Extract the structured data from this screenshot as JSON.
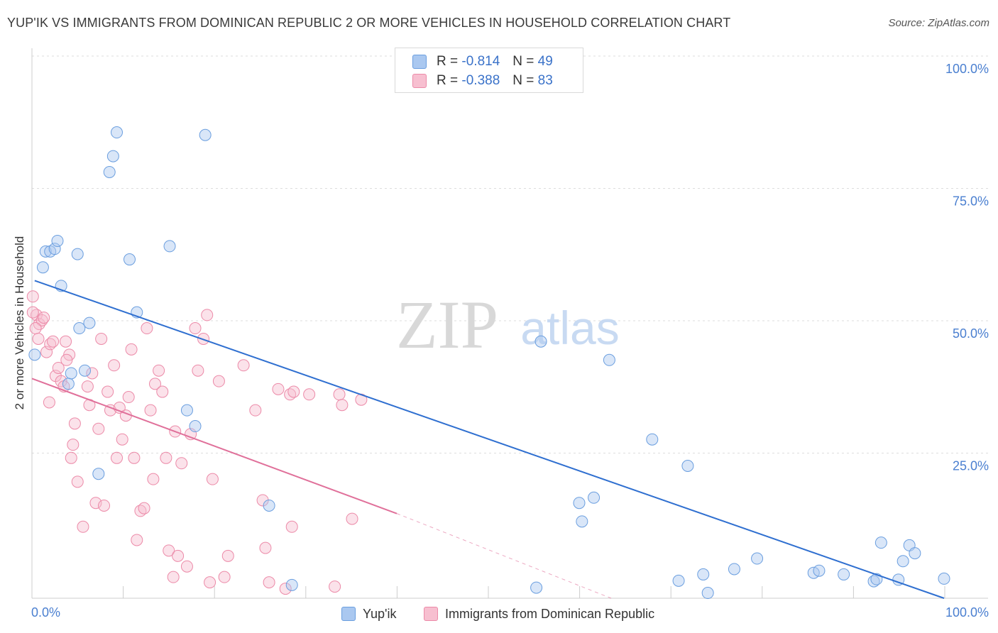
{
  "title": "YUP'IK VS IMMIGRANTS FROM DOMINICAN REPUBLIC 2 OR MORE VEHICLES IN HOUSEHOLD CORRELATION CHART",
  "source": "Source: ZipAtlas.com",
  "watermark": {
    "zip": "ZIP",
    "atlas": "atlas"
  },
  "legend": {
    "r_label": "R =",
    "n_label": "N =",
    "series": [
      {
        "name": "Yup'ik",
        "r": "-0.814",
        "n": "49",
        "fill": "#aac8f0",
        "stroke": "#6a9edf"
      },
      {
        "name": "Immigrants from Dominican Republic",
        "r": "-0.388",
        "n": "83",
        "fill": "#f7bfd0",
        "stroke": "#ec8aa8"
      }
    ]
  },
  "colors": {
    "blue_point_fill": "rgba(170,200,240,0.45)",
    "blue_point_stroke": "#6a9edf",
    "blue_line": "#2f6fd0",
    "pink_point_fill": "rgba(247,191,208,0.45)",
    "pink_point_stroke": "#ec8aa8",
    "pink_line": "#e0709a",
    "tick_label": "#4a7fd0",
    "grid": "#dddddd"
  },
  "chart_data": {
    "type": "scatter",
    "ylabel": "2 or more Vehicles in Household",
    "xlim": [
      0,
      100
    ],
    "ylim": [
      0,
      100
    ],
    "x_tick_labels": [
      "0.0%",
      "100.0%"
    ],
    "y_ticks": [
      25,
      50,
      75,
      100
    ],
    "y_tick_labels": [
      "25.0%",
      "50.0%",
      "75.0%",
      "100.0%"
    ],
    "grid": true,
    "series": [
      {
        "name": "Yup'ik",
        "points": [
          [
            0.3,
            46
          ],
          [
            1.2,
            62.5
          ],
          [
            1.5,
            65.5
          ],
          [
            2,
            65.5
          ],
          [
            2.5,
            66
          ],
          [
            2.8,
            67.5
          ],
          [
            3.2,
            59
          ],
          [
            4,
            40.5
          ],
          [
            4.3,
            42.5
          ],
          [
            5,
            65
          ],
          [
            5.2,
            51
          ],
          [
            5.8,
            43
          ],
          [
            6.3,
            52
          ],
          [
            7.3,
            23.5
          ],
          [
            8.5,
            80.5
          ],
          [
            8.9,
            83.5
          ],
          [
            9.3,
            88
          ],
          [
            10.7,
            64
          ],
          [
            11.5,
            54
          ],
          [
            15.1,
            66.5
          ],
          [
            17,
            35.5
          ],
          [
            17.9,
            32.5
          ],
          [
            19,
            87.5
          ],
          [
            26,
            17.5
          ],
          [
            28.5,
            2.5
          ],
          [
            55.3,
            2
          ],
          [
            55.8,
            48.5
          ],
          [
            60,
            18
          ],
          [
            60.3,
            14.5
          ],
          [
            61.6,
            19
          ],
          [
            63.3,
            45
          ],
          [
            68,
            30
          ],
          [
            70.9,
            3.3
          ],
          [
            71.9,
            25
          ],
          [
            73.6,
            4.5
          ],
          [
            74.1,
            1
          ],
          [
            77,
            5.5
          ],
          [
            79.5,
            7.5
          ],
          [
            85.7,
            4.8
          ],
          [
            86.3,
            5.2
          ],
          [
            89,
            4.5
          ],
          [
            92.3,
            3.2
          ],
          [
            92.6,
            3.6
          ],
          [
            93.1,
            10.5
          ],
          [
            95,
            3.5
          ],
          [
            95.5,
            7
          ],
          [
            96.2,
            10
          ],
          [
            96.8,
            8.5
          ],
          [
            100,
            3.7
          ]
        ]
      },
      {
        "name": "Immigrants from Dominican Republic",
        "points": [
          [
            0.1,
            57
          ],
          [
            0.5,
            53.5
          ],
          [
            0.8,
            51.8
          ],
          [
            1.1,
            52.5
          ],
          [
            1.3,
            53
          ],
          [
            1.6,
            46.5
          ],
          [
            2,
            48
          ],
          [
            2.3,
            48.5
          ],
          [
            2.6,
            42
          ],
          [
            2.9,
            43.5
          ],
          [
            3.2,
            41
          ],
          [
            3.5,
            40
          ],
          [
            3.7,
            48.5
          ],
          [
            4.1,
            46
          ],
          [
            4.3,
            26.5
          ],
          [
            4.5,
            29
          ],
          [
            4.7,
            33
          ],
          [
            5,
            22
          ],
          [
            5.6,
            13.5
          ],
          [
            6.1,
            40
          ],
          [
            6.3,
            36.5
          ],
          [
            6.6,
            42.5
          ],
          [
            7,
            18
          ],
          [
            7.3,
            32
          ],
          [
            7.6,
            49
          ],
          [
            7.9,
            17.5
          ],
          [
            8.3,
            39
          ],
          [
            8.6,
            35.5
          ],
          [
            9,
            44
          ],
          [
            9.3,
            26.5
          ],
          [
            9.6,
            36
          ],
          [
            9.9,
            30
          ],
          [
            10.3,
            34.5
          ],
          [
            10.6,
            38
          ],
          [
            10.9,
            47
          ],
          [
            11.2,
            26.5
          ],
          [
            11.5,
            11
          ],
          [
            11.9,
            16.5
          ],
          [
            12.3,
            17
          ],
          [
            12.6,
            51
          ],
          [
            13,
            35.5
          ],
          [
            13.3,
            22.5
          ],
          [
            13.5,
            40.5
          ],
          [
            13.9,
            43
          ],
          [
            14.3,
            39
          ],
          [
            14.7,
            26.5
          ],
          [
            15,
            9
          ],
          [
            15.5,
            4
          ],
          [
            15.7,
            31.5
          ],
          [
            16,
            8
          ],
          [
            16.4,
            25.5
          ],
          [
            17,
            6
          ],
          [
            17.4,
            31
          ],
          [
            17.9,
            51
          ],
          [
            18.2,
            43
          ],
          [
            18.8,
            49
          ],
          [
            19.2,
            53.5
          ],
          [
            19.5,
            3
          ],
          [
            19.8,
            22.5
          ],
          [
            20.5,
            41
          ],
          [
            21.1,
            4
          ],
          [
            21.5,
            8
          ],
          [
            23.2,
            44
          ],
          [
            24.5,
            35.5
          ],
          [
            25.3,
            18.5
          ],
          [
            25.6,
            9.5
          ],
          [
            26,
            3
          ],
          [
            27,
            39.5
          ],
          [
            27.8,
            1.8
          ],
          [
            28.3,
            38.5
          ],
          [
            28.5,
            13.5
          ],
          [
            28.7,
            39
          ],
          [
            30.4,
            38.5
          ],
          [
            33.2,
            2.2
          ],
          [
            33.7,
            38.5
          ],
          [
            34,
            36.5
          ],
          [
            35.1,
            15
          ],
          [
            36.1,
            37.5
          ],
          [
            0.1,
            54
          ],
          [
            0.4,
            51
          ],
          [
            0.7,
            49
          ],
          [
            1.9,
            37
          ],
          [
            3.8,
            45
          ]
        ]
      }
    ],
    "trendlines": [
      {
        "series": "Yup'ik",
        "from": [
          0.3,
          60
        ],
        "to": [
          100,
          0
        ]
      },
      {
        "series": "Immigrants from Dominican Republic",
        "from": [
          0,
          41.5
        ],
        "to": [
          40,
          16
        ],
        "dashed_to": [
          63.5,
          0
        ]
      }
    ]
  }
}
